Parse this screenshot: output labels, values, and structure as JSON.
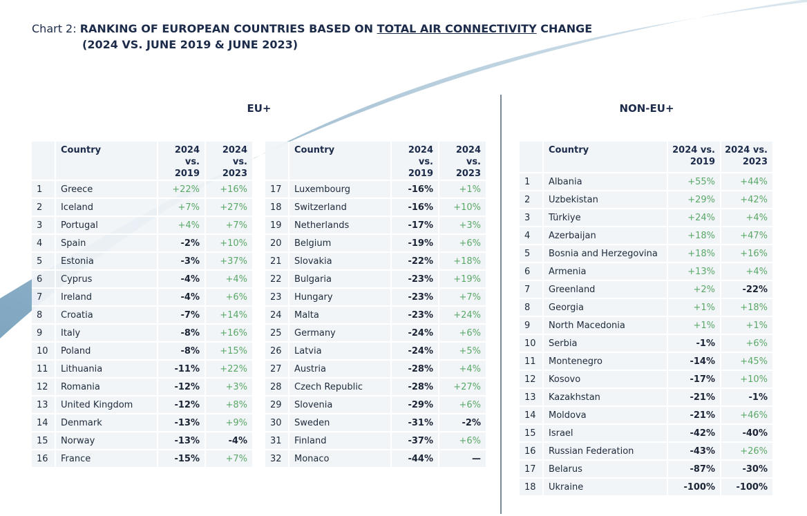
{
  "title": {
    "prefix": "Chart 2: ",
    "main_before": "RANKING OF EUROPEAN COUNTRIES BASED ON ",
    "main_underlined": "TOTAL AIR CONNECTIVITY",
    "main_after": " CHANGE",
    "line2": "(2024 VS. JUNE 2019 & JUNE 2023)"
  },
  "sections": {
    "eu": "EU+",
    "non_eu": "NON-EU+"
  },
  "headers": {
    "country": "Country",
    "col1": "2024 vs. 2019",
    "col2": "2024 vs. 2023"
  },
  "colors": {
    "positive": "#5aa867",
    "negative": "#1b2434",
    "swoosh": "#8fb0c7"
  },
  "eu_rows": [
    {
      "rank": "1",
      "country": "Greece",
      "v2019": "+22%",
      "v2023": "+16%"
    },
    {
      "rank": "2",
      "country": "Iceland",
      "v2019": "+7%",
      "v2023": "+27%"
    },
    {
      "rank": "3",
      "country": "Portugal",
      "v2019": "+4%",
      "v2023": "+7%"
    },
    {
      "rank": "4",
      "country": "Spain",
      "v2019": "-2%",
      "v2023": "+10%"
    },
    {
      "rank": "5",
      "country": "Estonia",
      "v2019": "-3%",
      "v2023": "+37%"
    },
    {
      "rank": "6",
      "country": "Cyprus",
      "v2019": "-4%",
      "v2023": "+4%"
    },
    {
      "rank": "7",
      "country": "Ireland",
      "v2019": "-4%",
      "v2023": "+6%"
    },
    {
      "rank": "8",
      "country": "Croatia",
      "v2019": "-7%",
      "v2023": "+14%"
    },
    {
      "rank": "9",
      "country": "Italy",
      "v2019": "-8%",
      "v2023": "+16%"
    },
    {
      "rank": "10",
      "country": "Poland",
      "v2019": "-8%",
      "v2023": "+15%"
    },
    {
      "rank": "11",
      "country": "Lithuania",
      "v2019": "-11%",
      "v2023": "+22%"
    },
    {
      "rank": "12",
      "country": "Romania",
      "v2019": "-12%",
      "v2023": "+3%"
    },
    {
      "rank": "13",
      "country": "United Kingdom",
      "v2019": "-12%",
      "v2023": "+8%"
    },
    {
      "rank": "14",
      "country": "Denmark",
      "v2019": "-13%",
      "v2023": "+9%"
    },
    {
      "rank": "15",
      "country": "Norway",
      "v2019": "-13%",
      "v2023": "-4%"
    },
    {
      "rank": "16",
      "country": "France",
      "v2019": "-15%",
      "v2023": "+7%"
    },
    {
      "rank": "17",
      "country": "Luxembourg",
      "v2019": "-16%",
      "v2023": "+1%"
    },
    {
      "rank": "18",
      "country": "Switzerland",
      "v2019": "-16%",
      "v2023": "+10%"
    },
    {
      "rank": "19",
      "country": "Netherlands",
      "v2019": "-17%",
      "v2023": "+3%"
    },
    {
      "rank": "20",
      "country": "Belgium",
      "v2019": "-19%",
      "v2023": "+6%"
    },
    {
      "rank": "21",
      "country": "Slovakia",
      "v2019": "-22%",
      "v2023": "+18%"
    },
    {
      "rank": "22",
      "country": "Bulgaria",
      "v2019": "-23%",
      "v2023": "+19%"
    },
    {
      "rank": "23",
      "country": "Hungary",
      "v2019": "-23%",
      "v2023": "+7%"
    },
    {
      "rank": "24",
      "country": "Malta",
      "v2019": "-23%",
      "v2023": "+24%"
    },
    {
      "rank": "25",
      "country": "Germany",
      "v2019": "-24%",
      "v2023": "+6%"
    },
    {
      "rank": "26",
      "country": "Latvia",
      "v2019": "-24%",
      "v2023": "+5%"
    },
    {
      "rank": "27",
      "country": "Austria",
      "v2019": "-28%",
      "v2023": "+4%"
    },
    {
      "rank": "28",
      "country": "Czech Republic",
      "v2019": "-28%",
      "v2023": "+27%"
    },
    {
      "rank": "29",
      "country": "Slovenia",
      "v2019": "-29%",
      "v2023": "+6%"
    },
    {
      "rank": "30",
      "country": "Sweden",
      "v2019": "-31%",
      "v2023": "-2%"
    },
    {
      "rank": "31",
      "country": "Finland",
      "v2019": "-37%",
      "v2023": "+6%"
    },
    {
      "rank": "32",
      "country": "Monaco",
      "v2019": "-44%",
      "v2023": "—"
    }
  ],
  "non_eu_rows": [
    {
      "rank": "1",
      "country": "Albania",
      "v2019": "+55%",
      "v2023": "+44%"
    },
    {
      "rank": "2",
      "country": "Uzbekistan",
      "v2019": "+29%",
      "v2023": "+42%"
    },
    {
      "rank": "3",
      "country": "Türkiye",
      "v2019": "+24%",
      "v2023": "+4%"
    },
    {
      "rank": "4",
      "country": "Azerbaijan",
      "v2019": "+18%",
      "v2023": "+47%"
    },
    {
      "rank": "5",
      "country": "Bosnia and Herzegovina",
      "v2019": "+18%",
      "v2023": "+16%"
    },
    {
      "rank": "6",
      "country": "Armenia",
      "v2019": "+13%",
      "v2023": "+4%"
    },
    {
      "rank": "7",
      "country": "Greenland",
      "v2019": "+2%",
      "v2023": "-22%"
    },
    {
      "rank": "8",
      "country": "Georgia",
      "v2019": "+1%",
      "v2023": "+18%"
    },
    {
      "rank": "9",
      "country": "North Macedonia",
      "v2019": "+1%",
      "v2023": "+1%"
    },
    {
      "rank": "10",
      "country": "Serbia",
      "v2019": "-1%",
      "v2023": "+6%"
    },
    {
      "rank": "11",
      "country": "Montenegro",
      "v2019": "-14%",
      "v2023": "+45%"
    },
    {
      "rank": "12",
      "country": "Kosovo",
      "v2019": "-17%",
      "v2023": "+10%"
    },
    {
      "rank": "13",
      "country": "Kazakhstan",
      "v2019": "-21%",
      "v2023": "-1%"
    },
    {
      "rank": "14",
      "country": "Moldova",
      "v2019": "-21%",
      "v2023": "+46%"
    },
    {
      "rank": "15",
      "country": "Israel",
      "v2019": "-42%",
      "v2023": "-40%"
    },
    {
      "rank": "16",
      "country": "Russian Federation",
      "v2019": "-43%",
      "v2023": "+26%"
    },
    {
      "rank": "17",
      "country": "Belarus",
      "v2019": "-87%",
      "v2023": "-30%"
    },
    {
      "rank": "18",
      "country": "Ukraine",
      "v2019": "-100%",
      "v2023": "-100%"
    }
  ]
}
